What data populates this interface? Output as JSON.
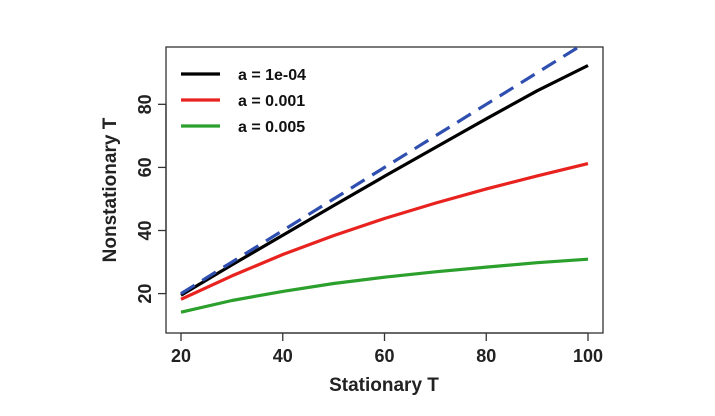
{
  "chart_data": {
    "type": "line",
    "title": "",
    "xlabel": "Stationary T",
    "ylabel": "Nonstationary T",
    "xlim": [
      20,
      100
    ],
    "ylim": [
      11,
      95
    ],
    "xticks": [
      20,
      40,
      60,
      80,
      100
    ],
    "yticks": [
      20,
      40,
      60,
      80
    ],
    "grid": false,
    "legend": {
      "position": "top-left"
    },
    "x": [
      20,
      30,
      40,
      50,
      60,
      70,
      80,
      90,
      100
    ],
    "series": [
      {
        "name": "a = 1e-04",
        "color": "#000000",
        "dash": "solid",
        "values": [
          19.5,
          29.1,
          38.5,
          47.9,
          57.2,
          66.3,
          75.4,
          84.3,
          92.3
        ]
      },
      {
        "name": "a = 0.001",
        "color": "#e8231f",
        "dash": "solid",
        "values": [
          18.2,
          25.6,
          32.4,
          38.4,
          43.8,
          48.7,
          53.2,
          57.3,
          61.2
        ]
      },
      {
        "name": "a = 0.005",
        "color": "#2ca02c",
        "dash": "solid",
        "values": [
          14.1,
          17.8,
          20.7,
          23.2,
          25.2,
          26.9,
          28.4,
          29.8,
          30.9
        ]
      },
      {
        "name": "",
        "color": "#2f4fb0",
        "dash": "dashed",
        "values": [
          20,
          30,
          40,
          50,
          60,
          70,
          80,
          90,
          100
        ]
      }
    ]
  }
}
